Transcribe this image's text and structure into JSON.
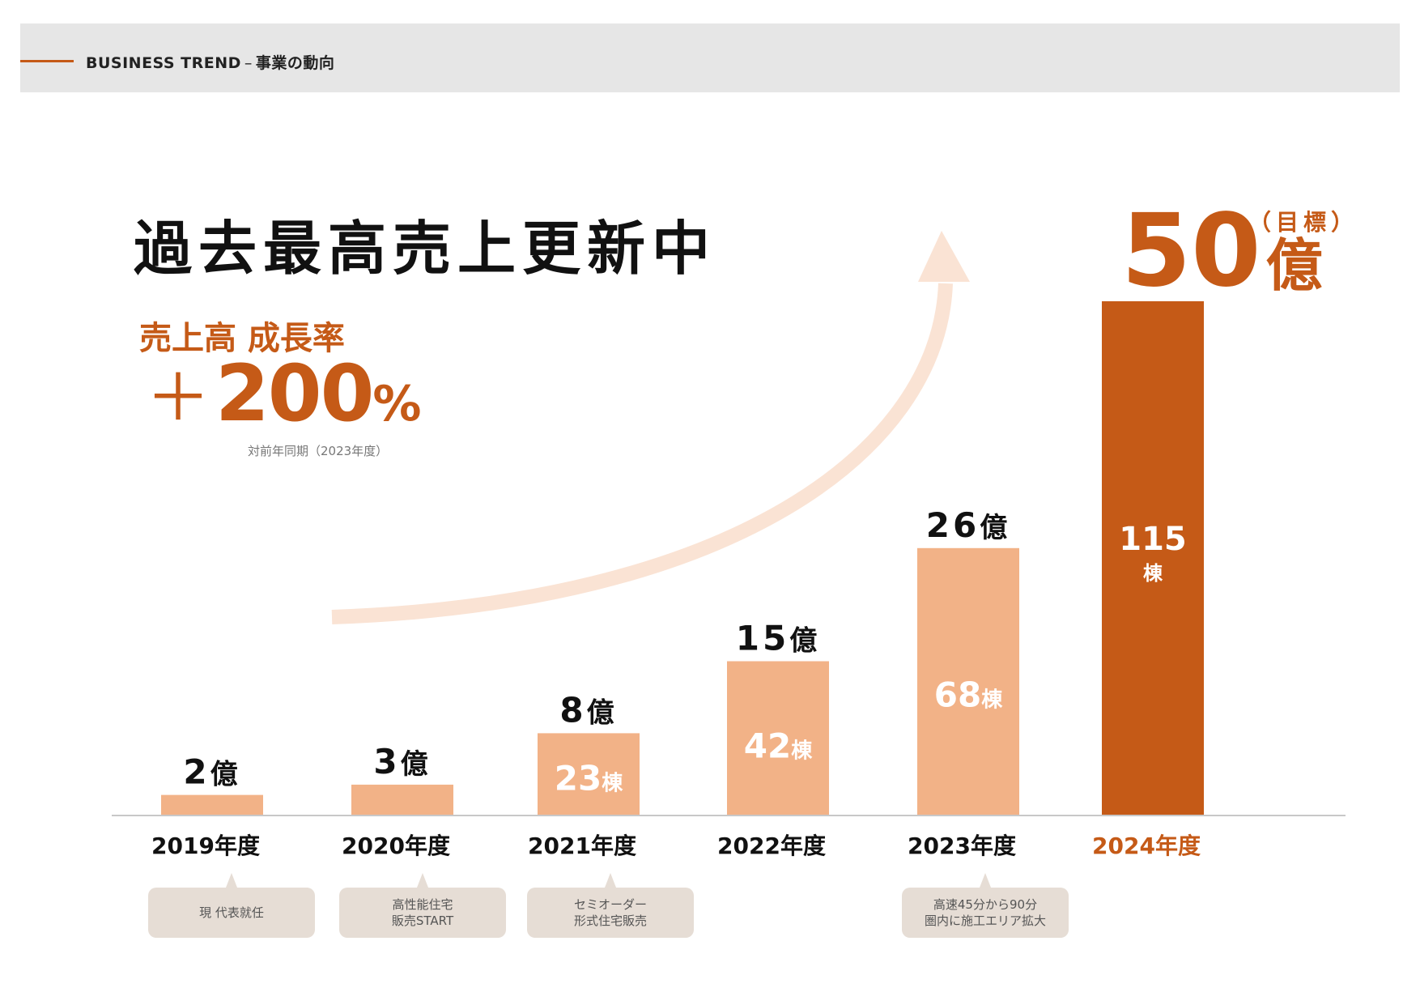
{
  "header": {
    "title_en": "BUSINESS TREND",
    "separator": "–",
    "title_ja": "事業の動向"
  },
  "headline": "過去最高売上更新中",
  "growth": {
    "label": "売上高 成長率",
    "sign": "＋",
    "value": "200",
    "unit": "%",
    "note": "対前年同期（2023年度）"
  },
  "target": {
    "note": "（目標）",
    "value": "50",
    "unit": "億"
  },
  "chart_data": {
    "type": "bar",
    "categories": [
      "2019年度",
      "2020年度",
      "2021年度",
      "2022年度",
      "2023年度",
      "2024年度"
    ],
    "values": [
      2,
      3,
      8,
      15,
      26,
      50
    ],
    "value_unit": "億",
    "value_labels": [
      "2",
      "3",
      "8",
      "15",
      "26",
      "50"
    ],
    "buildings": [
      null,
      null,
      23,
      42,
      68,
      115
    ],
    "buildings_unit": "棟",
    "highlight_index": 5,
    "highlight_note": "目標",
    "ylim": [
      0,
      50
    ],
    "title": "",
    "xlabel": "",
    "ylabel": "",
    "grid": false,
    "colors": {
      "bar": "#f2b287",
      "highlight_bar": "#c55a17",
      "accent_text": "#c55a17",
      "arrow": "#fae3d4",
      "label_text": "#111111",
      "buildings_text": "#ffffff"
    }
  },
  "notes": [
    {
      "category": "2019年度",
      "text": "現 代表就任"
    },
    {
      "category": "2020年度",
      "text": "高性能住宅\n販売START"
    },
    {
      "category": "2021年度",
      "text": "セミオーダー\n形式住宅販売"
    },
    {
      "category": "2023年度",
      "text": "高速45分から90分\n圏内に施工エリア拡大"
    }
  ],
  "decor": {
    "trend_arrow": "growth-arrow-icon"
  }
}
